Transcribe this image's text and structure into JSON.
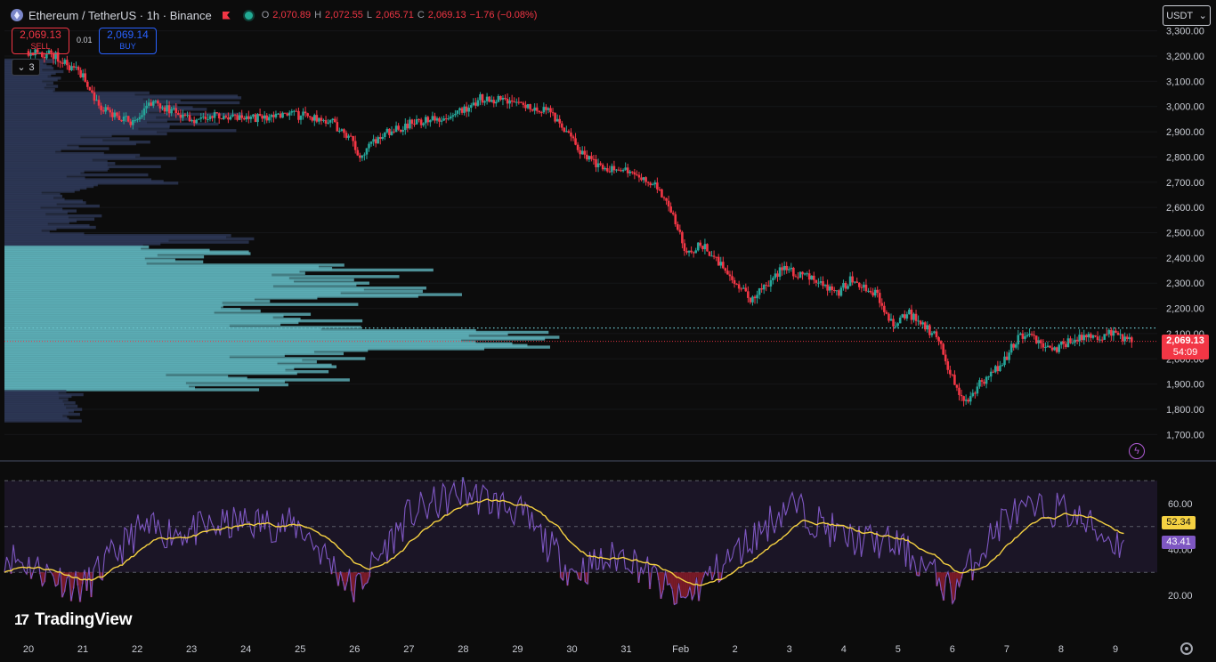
{
  "header": {
    "title": "Ethereum / TetherUS · 1h · Binance",
    "ohlc": {
      "o_label": "O",
      "o": "2,070.89",
      "h_label": "H",
      "h": "2,072.55",
      "l_label": "L",
      "l": "2,065.71",
      "c_label": "C",
      "c": "2,069.13",
      "change": "−1.76 (−0.08%)"
    }
  },
  "trade": {
    "sell_price": "2,069.13",
    "sell_label": "SELL",
    "spread": "0.01",
    "buy_price": "2,069.14",
    "buy_label": "BUY"
  },
  "indicators_toggle": {
    "count": "3",
    "icon": "chevron-down-icon"
  },
  "currency_select": {
    "value": "USDT",
    "icon": "chevron-down-icon"
  },
  "price_axis": {
    "ticks": [
      "3,300.00",
      "3,200.00",
      "3,100.00",
      "3,000.00",
      "2,900.00",
      "2,800.00",
      "2,700.00",
      "2,600.00",
      "2,500.00",
      "2,400.00",
      "2,300.00",
      "2,200.00",
      "2,100.00",
      "2,000.00",
      "1,900.00",
      "1,800.00",
      "1,700.00"
    ],
    "last_price": "2,069.13",
    "countdown": "54:09"
  },
  "rsi_axis": {
    "ticks": [
      "60.00",
      "40.00",
      "20.00"
    ],
    "rsi_ma": "52.34",
    "rsi_value": "43.41"
  },
  "time_axis": [
    "20",
    "21",
    "22",
    "23",
    "24",
    "25",
    "26",
    "27",
    "28",
    "29",
    "30",
    "31",
    "Feb",
    "2",
    "3",
    "4",
    "5",
    "6",
    "7",
    "8",
    "9"
  ],
  "brand": "TradingView",
  "colors": {
    "up": "#26a69a",
    "down": "#f23645",
    "rsi_line": "#7e57c2",
    "rsi_ma": "#f5d142",
    "volume_profile": "#5fb3bc",
    "background": "#0c0c0c"
  },
  "chart_data": {
    "type": "candlestick",
    "symbol": "ETHUSDT",
    "interval": "1h",
    "ylim": [
      1700,
      3300
    ],
    "path": [
      {
        "x": "20",
        "y": 3220
      },
      {
        "x": "20.5",
        "y": 3200
      },
      {
        "x": "21",
        "y": 3120
      },
      {
        "x": "21.3",
        "y": 3000
      },
      {
        "x": "21.6",
        "y": 2960
      },
      {
        "x": "22",
        "y": 2930
      },
      {
        "x": "22.2",
        "y": 3020
      },
      {
        "x": "22.6",
        "y": 2990
      },
      {
        "x": "23",
        "y": 2950
      },
      {
        "x": "23.5",
        "y": 2960
      },
      {
        "x": "24",
        "y": 2950
      },
      {
        "x": "24.4",
        "y": 2960
      },
      {
        "x": "25",
        "y": 2965
      },
      {
        "x": "25.5",
        "y": 2950
      },
      {
        "x": "25.9",
        "y": 2880
      },
      {
        "x": "26.1",
        "y": 2810
      },
      {
        "x": "26.6",
        "y": 2900
      },
      {
        "x": "27",
        "y": 2930
      },
      {
        "x": "27.5",
        "y": 2950
      },
      {
        "x": "28",
        "y": 2990
      },
      {
        "x": "28.3",
        "y": 3030
      },
      {
        "x": "29",
        "y": 3020
      },
      {
        "x": "29.6",
        "y": 2980
      },
      {
        "x": "29.9",
        "y": 2900
      },
      {
        "x": "30.2",
        "y": 2810
      },
      {
        "x": "30.5",
        "y": 2770
      },
      {
        "x": "31",
        "y": 2740
      },
      {
        "x": "31.5",
        "y": 2700
      },
      {
        "x": "31.8",
        "y": 2610
      },
      {
        "x": "Feb 0.1",
        "y": 2420
      },
      {
        "x": "Feb 0.4",
        "y": 2450
      },
      {
        "x": "Feb 0.8",
        "y": 2360
      },
      {
        "x": "2.3",
        "y": 2230
      },
      {
        "x": "2.9",
        "y": 2360
      },
      {
        "x": "3.4",
        "y": 2320
      },
      {
        "x": "3.9",
        "y": 2260
      },
      {
        "x": "4.1",
        "y": 2310
      },
      {
        "x": "4.6",
        "y": 2260
      },
      {
        "x": "4.9",
        "y": 2140
      },
      {
        "x": "5.2",
        "y": 2180
      },
      {
        "x": "5.7",
        "y": 2090
      },
      {
        "x": "6.0",
        "y": 1930
      },
      {
        "x": "6.2",
        "y": 1820
      },
      {
        "x": "6.5",
        "y": 1900
      },
      {
        "x": "6.9",
        "y": 1980
      },
      {
        "x": "7.2",
        "y": 2080
      },
      {
        "x": "7.5",
        "y": 2090
      },
      {
        "x": "7.8",
        "y": 2030
      },
      {
        "x": "8.2",
        "y": 2070
      },
      {
        "x": "8.6",
        "y": 2090
      },
      {
        "x": "9.0",
        "y": 2100
      },
      {
        "x": "9.3",
        "y": 2069
      }
    ],
    "last_close": 2069.13,
    "poc_price": 2080,
    "rsi": {
      "ylim": [
        0,
        80
      ],
      "overbought": 70,
      "oversold": 30,
      "mid": 50,
      "path": [
        {
          "x": "20",
          "y": 38
        },
        {
          "x": "21",
          "y": 23
        },
        {
          "x": "22",
          "y": 48
        },
        {
          "x": "23",
          "y": 48
        },
        {
          "x": "24",
          "y": 52
        },
        {
          "x": "25",
          "y": 50
        },
        {
          "x": "26",
          "y": 22
        },
        {
          "x": "27",
          "y": 55
        },
        {
          "x": "28",
          "y": 65
        },
        {
          "x": "29",
          "y": 57
        },
        {
          "x": "30",
          "y": 30
        },
        {
          "x": "31",
          "y": 38
        },
        {
          "x": "Feb",
          "y": 17
        },
        {
          "x": "2",
          "y": 38
        },
        {
          "x": "3",
          "y": 60
        },
        {
          "x": "4",
          "y": 45
        },
        {
          "x": "5",
          "y": 42
        },
        {
          "x": "6",
          "y": 22
        },
        {
          "x": "7",
          "y": 55
        },
        {
          "x": "8",
          "y": 58
        },
        {
          "x": "9",
          "y": 43
        }
      ]
    }
  }
}
